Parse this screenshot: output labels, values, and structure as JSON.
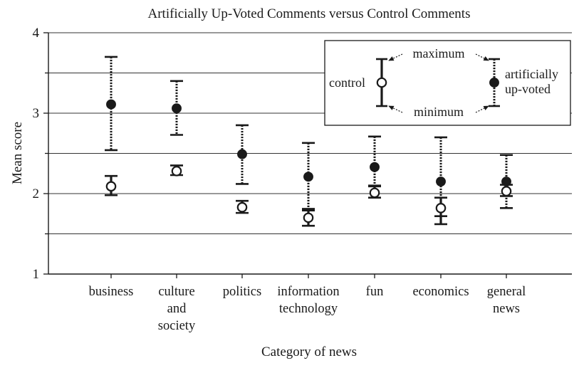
{
  "chart_data": {
    "type": "scatter",
    "title": "Artificially Up-Voted Comments versus Control Comments",
    "xlabel": "Category of news",
    "ylabel": "Mean score",
    "ylim": [
      1,
      4
    ],
    "yticks": [
      1,
      2,
      3,
      4
    ],
    "grid": true,
    "legend_position": "top-right",
    "categories": [
      [
        "business"
      ],
      [
        "culture",
        "and",
        "society"
      ],
      [
        "politics"
      ],
      [
        "information",
        "technology"
      ],
      [
        "fun"
      ],
      [
        "economics"
      ],
      [
        "general",
        "news"
      ]
    ],
    "series": [
      {
        "name": "control",
        "marker": "open-circle",
        "line": "solid",
        "values": [
          2.09,
          2.28,
          1.83,
          1.7,
          2.01,
          1.82,
          2.03
        ],
        "minimum": [
          1.98,
          2.23,
          1.76,
          1.6,
          1.95,
          1.62,
          1.97
        ],
        "maximum": [
          2.22,
          2.35,
          1.91,
          1.81,
          2.1,
          1.95,
          2.11
        ]
      },
      {
        "name": "artificially up-voted",
        "marker": "filled-circle",
        "line": "dotted",
        "values": [
          3.11,
          3.06,
          2.49,
          2.21,
          2.33,
          2.15,
          2.15
        ],
        "minimum": [
          2.54,
          2.73,
          2.12,
          1.79,
          2.09,
          1.72,
          1.82
        ],
        "maximum": [
          3.7,
          3.4,
          2.85,
          2.63,
          2.71,
          2.7,
          2.48
        ]
      }
    ],
    "legend": {
      "control_label": "control",
      "upvoted_label_line1": "artificially",
      "upvoted_label_line2": "up-voted",
      "maximum_label": "maximum",
      "minimum_label": "minimum"
    },
    "colors": {
      "ink": "#1a1a1a",
      "grid": "#333333",
      "background": "#ffffff"
    }
  }
}
